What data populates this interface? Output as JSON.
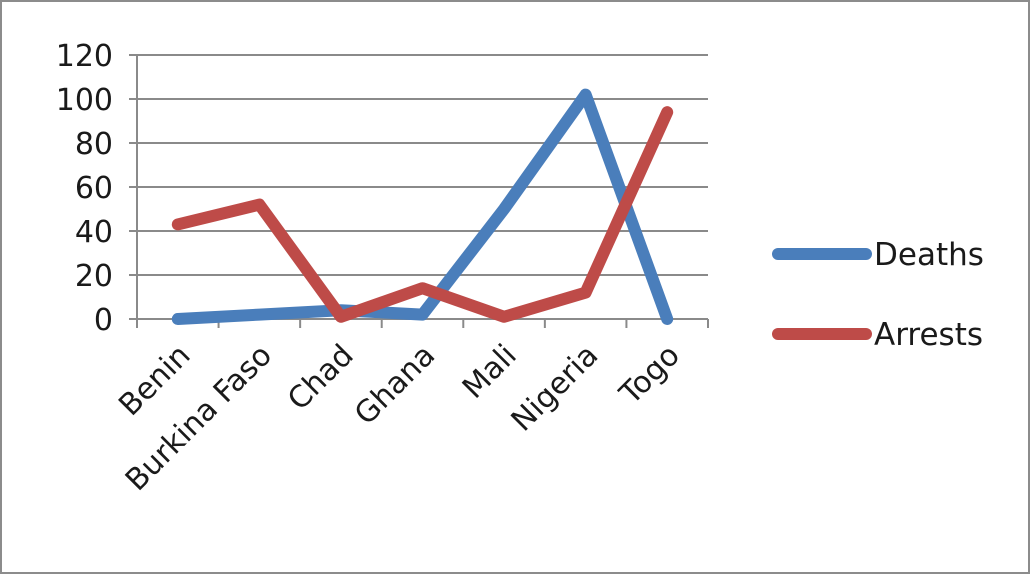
{
  "chart_data": {
    "type": "line",
    "title": "",
    "xlabel": "",
    "ylabel": "",
    "categories": [
      "Benin",
      "Burkina Faso",
      "Chad",
      "Ghana",
      "Mali",
      "Nigeria",
      "Togo"
    ],
    "ylim": [
      0,
      120
    ],
    "yticks": [
      "0",
      "20",
      "40",
      "60",
      "80",
      "100",
      "120"
    ],
    "grid": true,
    "legend": "right",
    "series": [
      {
        "name": "Deaths",
        "color": "#4a7ebb",
        "values": [
          0,
          2,
          4,
          2,
          50,
          102,
          0
        ]
      },
      {
        "name": "Arrests",
        "color": "#be4b48",
        "values": [
          43,
          52,
          1,
          14,
          1,
          12,
          94
        ]
      }
    ]
  }
}
